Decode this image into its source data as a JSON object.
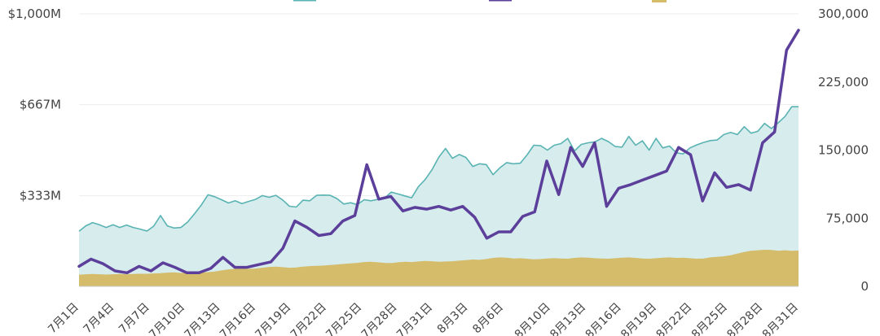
{
  "chart_data": {
    "type": "line",
    "title": "",
    "legend_position": "top",
    "legend_items": [
      {
        "name": "",
        "color": "#5ab3b3",
        "marker": "line"
      },
      {
        "name": "",
        "color": "#5b3f9a",
        "marker": "line"
      },
      {
        "name": "",
        "color": "#d4bc6a",
        "marker": "square"
      }
    ],
    "y_left": {
      "range": [
        0,
        1000
      ],
      "unit": "M USD",
      "ticks": [
        {
          "value": 1000,
          "label": "$1,000M"
        },
        {
          "value": 667,
          "label": "$667M"
        },
        {
          "value": 333,
          "label": "$333M"
        }
      ]
    },
    "y_right": {
      "range": [
        0,
        300000
      ],
      "ticks": [
        {
          "value": 300000,
          "label": "300,000"
        },
        {
          "value": 225000,
          "label": "225,000"
        },
        {
          "value": 150000,
          "label": "150,000"
        },
        {
          "value": 75000,
          "label": "75,000"
        },
        {
          "value": 0,
          "label": "0"
        }
      ]
    },
    "x_tick_labels": [
      "7月1日",
      "7月4日",
      "7月7日",
      "7月10日",
      "7月13日",
      "7月16日",
      "7月19日",
      "7月22日",
      "7月25日",
      "7月28日",
      "7月31日",
      "8月3日",
      "8月6日",
      "8月10日",
      "8月13日",
      "8月16日",
      "8月19日",
      "8月22日",
      "8月25日",
      "8月28日",
      "8月31日"
    ],
    "x_tick_indices": [
      0,
      3,
      6,
      9,
      12,
      15,
      18,
      21,
      24,
      27,
      30,
      33,
      36,
      40,
      43,
      46,
      49,
      52,
      55,
      58,
      61
    ],
    "series": [
      {
        "name": "",
        "axis": "left",
        "style": "area",
        "color": "#5ab3b3",
        "fill": "#d7eced",
        "values": [
          202,
          222,
          234,
          226,
          216,
          226,
          216,
          225,
          216,
          210,
          203,
          221,
          260,
          222,
          214,
          216,
          236,
          266,
          298,
          336,
          329,
          318,
          306,
          314,
          304,
          312,
          319,
          333,
          327,
          334,
          317,
          294,
          291,
          316,
          314,
          334,
          335,
          334,
          322,
          302,
          307,
          300,
          318,
          314,
          319,
          324,
          346,
          339,
          332,
          325,
          366,
          392,
          428,
          474,
          506,
          470,
          484,
          473,
          440,
          450,
          447,
          410,
          435,
          454,
          450,
          452,
          482,
          518,
          516,
          500,
          518,
          524,
          543,
          497,
          521,
          527,
          530,
          543,
          531,
          513,
          511,
          550,
          518,
          534,
          500,
          543,
          508,
          515,
          490,
          486,
          508,
          519,
          528,
          535,
          537,
          557,
          565,
          557,
          586,
          562,
          569,
          598,
          579,
          600,
          623,
          659,
          659
        ]
      },
      {
        "name": "",
        "axis": "right",
        "style": "line",
        "color": "#5b3f9a",
        "values": [
          22000,
          30000,
          25000,
          17000,
          15000,
          22000,
          17000,
          26000,
          21000,
          15000,
          15000,
          20000,
          32000,
          21000,
          21000,
          24000,
          27000,
          42000,
          72000,
          65000,
          56000,
          58000,
          72000,
          78000,
          134000,
          96000,
          99000,
          83000,
          87000,
          85000,
          88000,
          84000,
          88000,
          76000,
          53000,
          60000,
          60000,
          77000,
          82000,
          138000,
          101000,
          153000,
          132000,
          158000,
          88000,
          108000,
          112000,
          117000,
          122000,
          127000,
          153000,
          145000,
          94000,
          125000,
          109000,
          112000,
          106000,
          158000,
          170000,
          260000,
          282000
        ]
      },
      {
        "name": "",
        "axis": "left",
        "style": "area",
        "color": "#d4bc6a",
        "fill": "#d4bc6a",
        "values": [
          40,
          42,
          43,
          42,
          41,
          42,
          43,
          42,
          43,
          44,
          44,
          45,
          46,
          48,
          49,
          47,
          48,
          48,
          48,
          50,
          52,
          56,
          60,
          62,
          64,
          62,
          63,
          66,
          69,
          70,
          68,
          66,
          67,
          70,
          72,
          73,
          74,
          76,
          78,
          80,
          82,
          84,
          87,
          88,
          86,
          84,
          83,
          86,
          88,
          87,
          89,
          91,
          90,
          88,
          89,
          90,
          92,
          94,
          96,
          95,
          98,
          102,
          104,
          103,
          100,
          101,
          99,
          97,
          98,
          100,
          101,
          100,
          99,
          102,
          104,
          103,
          101,
          100,
          99,
          101,
          103,
          104,
          102,
          100,
          99,
          101,
          103,
          104,
          102,
          103,
          101,
          99,
          100,
          104,
          106,
          108,
          112,
          118,
          124,
          128,
          130,
          132,
          131,
          128,
          130,
          128,
          129
        ]
      }
    ]
  }
}
